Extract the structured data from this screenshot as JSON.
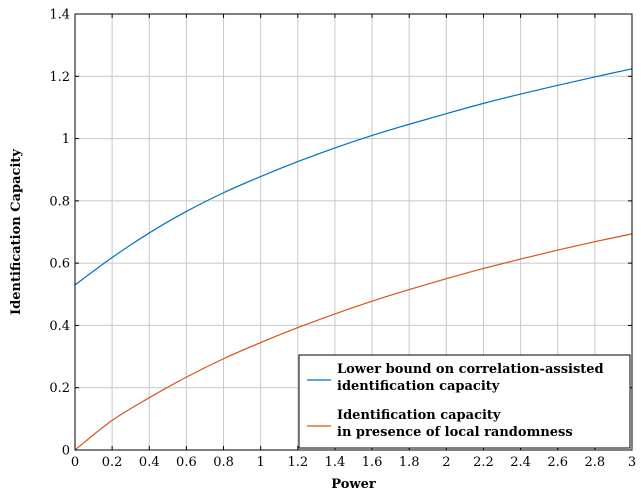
{
  "chart_data": {
    "type": "line",
    "xlabel": "Power",
    "ylabel": "Identification Capacity",
    "xlim": [
      0,
      3
    ],
    "ylim": [
      0,
      1.4
    ],
    "xticks": [
      0,
      0.2,
      0.4,
      0.6,
      0.8,
      1,
      1.2,
      1.4,
      1.6,
      1.8,
      2,
      2.2,
      2.4,
      2.6,
      2.8,
      3
    ],
    "xtick_labels": [
      "0",
      "0.2",
      "0.4",
      "0.6",
      "0.8",
      "1",
      "1.2",
      "1.4",
      "1.6",
      "1.8",
      "2",
      "2.2",
      "2.4",
      "2.6",
      "2.8",
      "3"
    ],
    "yticks": [
      0,
      0.2,
      0.4,
      0.6,
      0.8,
      1,
      1.2,
      1.4
    ],
    "ytick_labels": [
      "0",
      "0.2",
      "0.4",
      "0.6",
      "0.8",
      "1",
      "1.2",
      "1.4"
    ],
    "grid": true,
    "legend_position": "bottom-right",
    "x": [
      0,
      0.2,
      0.4,
      0.6,
      0.8,
      1,
      1.2,
      1.4,
      1.6,
      1.8,
      2,
      2.2,
      2.4,
      2.6,
      2.8,
      3
    ],
    "series": [
      {
        "name_lines": [
          "Lower bound on correlation-assisted",
          "identification capacity"
        ],
        "color": "#0072BD",
        "values": [
          0.53,
          0.618,
          0.697,
          0.766,
          0.826,
          0.878,
          0.926,
          0.97,
          1.01,
          1.046,
          1.08,
          1.113,
          1.143,
          1.171,
          1.198,
          1.224
        ]
      },
      {
        "name_lines": [
          "Identification capacity",
          "in presence of local randomness"
        ],
        "color": "#D95319",
        "values": [
          0,
          0.095,
          0.168,
          0.234,
          0.293,
          0.345,
          0.393,
          0.437,
          0.478,
          0.515,
          0.55,
          0.583,
          0.613,
          0.642,
          0.669,
          0.694
        ]
      }
    ]
  }
}
